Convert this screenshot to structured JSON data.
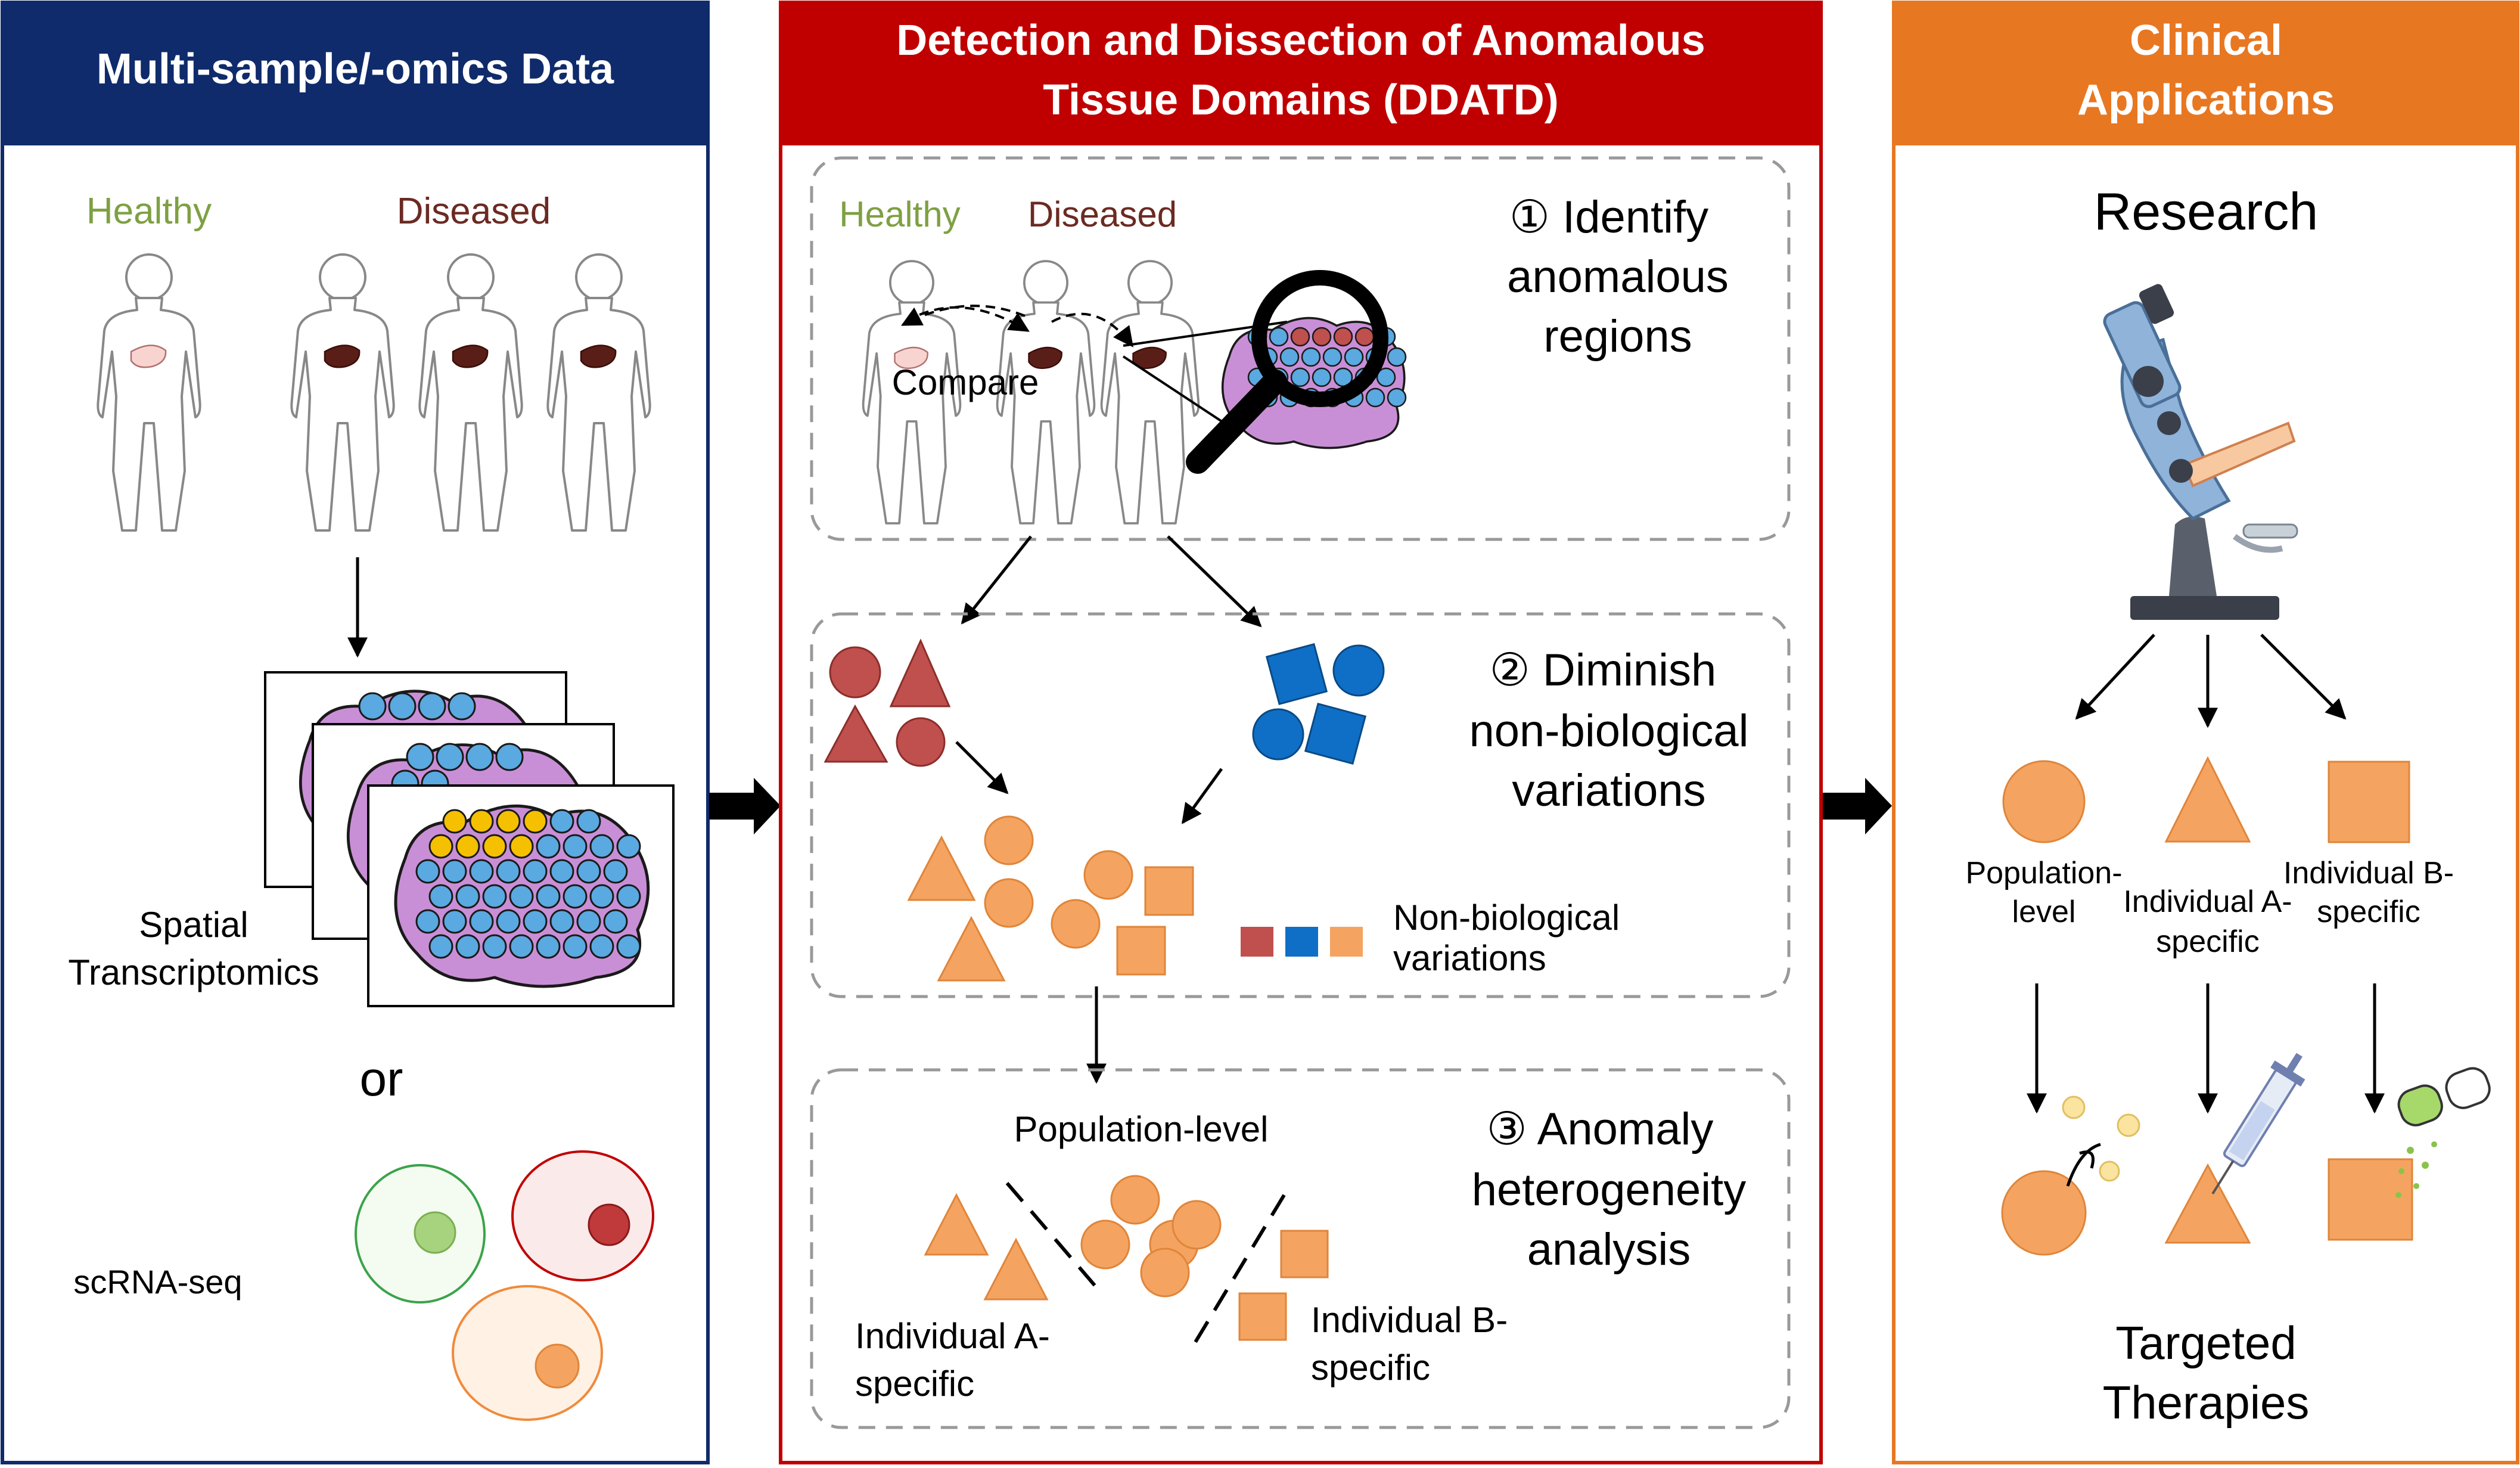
{
  "panels": {
    "left": {
      "title": "Multi-sample/-omics Data",
      "healthy_label": "Healthy",
      "diseased_label": "Diseased",
      "spatial_label_1": "Spatial",
      "spatial_label_2": "Transcriptomics",
      "or_label": "or",
      "scrna_label": "scRNA-seq"
    },
    "middle": {
      "title_line1": "Detection and Dissection of Anomalous",
      "title_line2": "Tissue Domains (DDATD)",
      "step1": {
        "healthy_label": "Healthy",
        "diseased_label": "Diseased",
        "compare_label": "Compare",
        "title_lines": [
          "① Identify",
          "anomalous",
          "regions"
        ]
      },
      "step2": {
        "title_lines": [
          "② Diminish",
          "non-biological",
          "variations"
        ],
        "legend_lines": [
          "Non-biological",
          "variations"
        ]
      },
      "step3": {
        "title_lines": [
          "③  Anomaly",
          "heterogeneity",
          "analysis"
        ],
        "population_label": "Population-level",
        "individual_a_lines": [
          "Individual A-",
          "specific"
        ],
        "individual_b_lines": [
          "Individual B-",
          "specific"
        ]
      }
    },
    "right": {
      "title_line1": "Clinical",
      "title_line2": "Applications",
      "research_label": "Research",
      "population_lines": [
        "Population-",
        "level"
      ],
      "individual_a_lines": [
        "Individual A-",
        "specific"
      ],
      "individual_b_lines": [
        "Individual B-",
        "specific"
      ],
      "targeted_lines": [
        "Targeted",
        "Therapies"
      ]
    }
  },
  "colors": {
    "left_header": "#0f2b6b",
    "middle_header": "#c00000",
    "right_header": "#e87722",
    "healthy_text": "#7ea043",
    "diseased_text": "#6b2a22",
    "red_shape": "#c0504d",
    "blue_shape": "#0f6fc6",
    "orange_shape": "#f4a460",
    "spot_blue": "#5aa9e0",
    "spot_yellow": "#f5c000",
    "tissue_purple": "#c98fd6"
  }
}
